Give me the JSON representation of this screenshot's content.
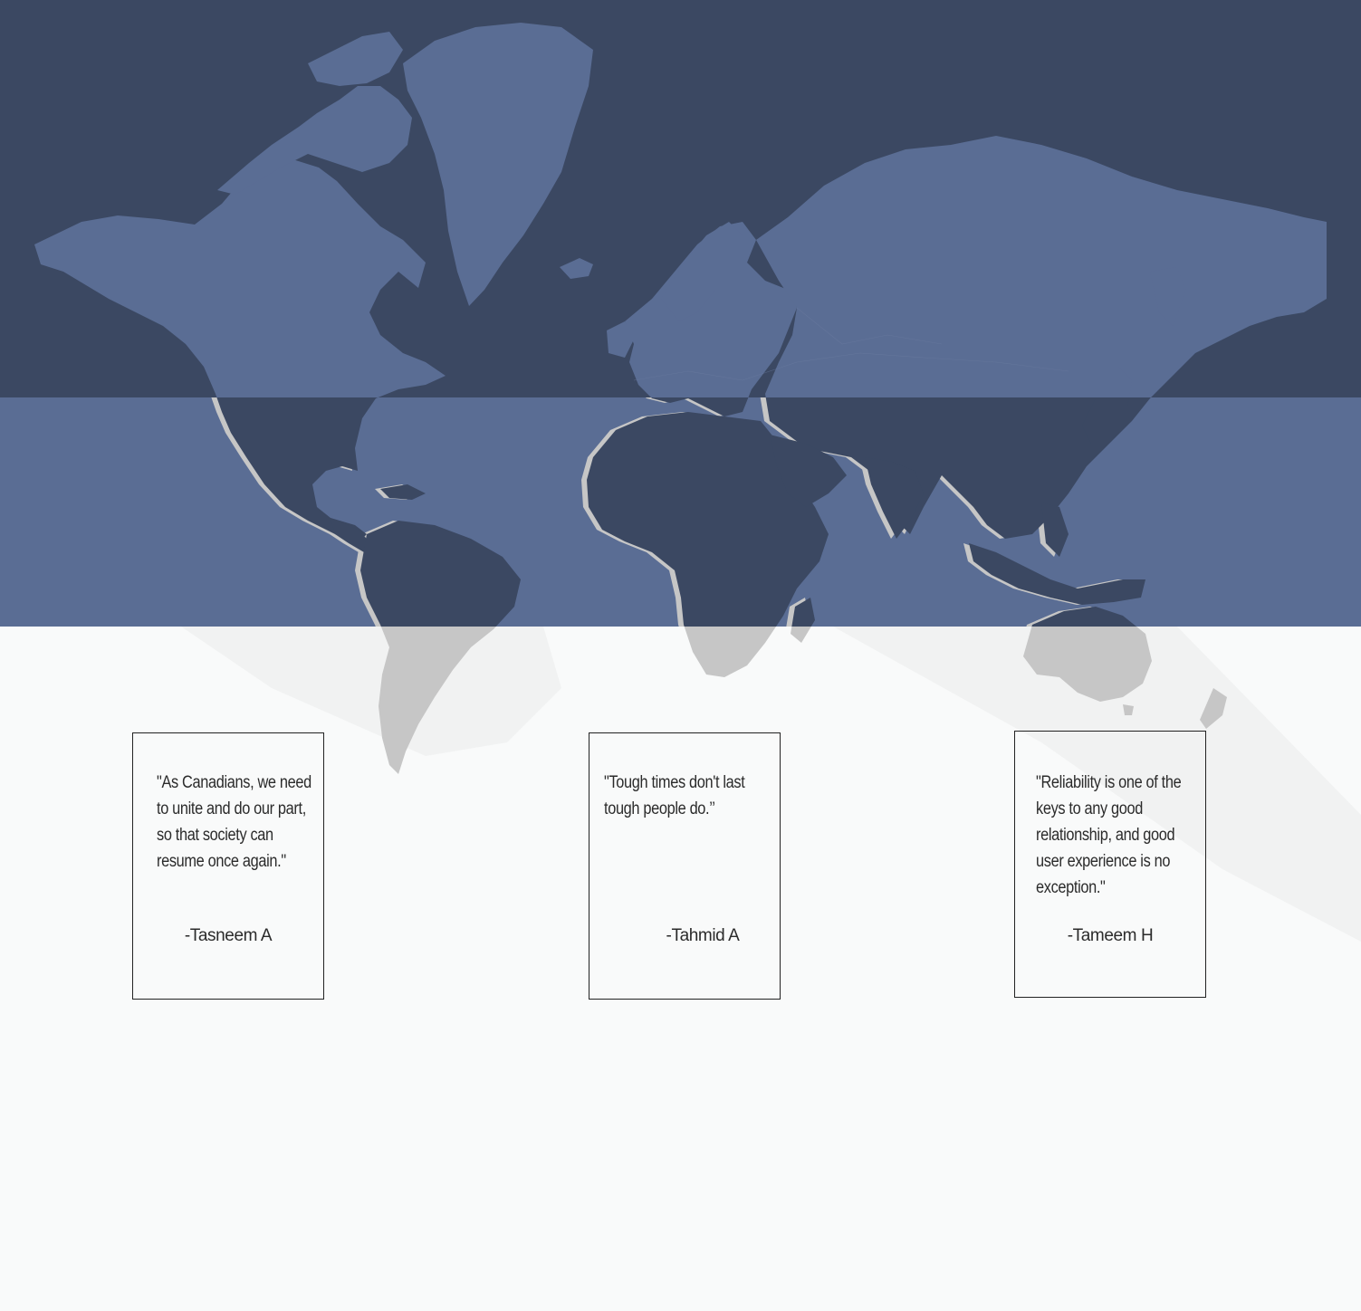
{
  "colors": {
    "band_top": "#3b4862",
    "band_mid": "#5a6d94",
    "background": "#f9fafa",
    "land_on_dark": "#5a6d94",
    "land_on_mid": "#3b4862",
    "land_on_light": "#c6c6c6"
  },
  "testimonials": [
    {
      "quote": "\"As Canadians, we need to unite and do our part, so that society can resume once again.\"",
      "author": "-Tasneem A"
    },
    {
      "quote": "\"Tough times don't last tough people do.’’",
      "author": "-Tahmid A"
    },
    {
      "quote": "\"Reliability is one of the keys to any good relationship, and good user experience is no exception.\"",
      "author": "-Tameem H"
    }
  ]
}
